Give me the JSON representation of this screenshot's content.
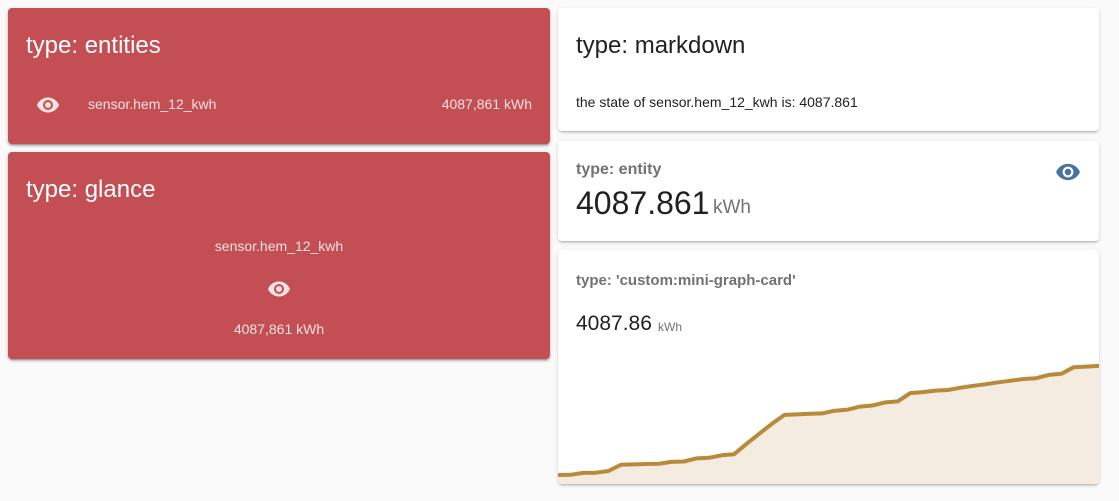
{
  "colors": {
    "entity_red": "#c34e53",
    "eye_icon_state_on": "#44739e",
    "graph_line": "#b88a3a",
    "graph_fill": "#f4ece1"
  },
  "entities_card": {
    "title": "type: entities",
    "row": {
      "icon": "eye-icon",
      "name": "sensor.hem_12_kwh",
      "state": "4087,861 kWh"
    }
  },
  "glance_card": {
    "title": "type: glance",
    "name": "sensor.hem_12_kwh",
    "icon": "eye-icon",
    "state": "4087,861 kWh"
  },
  "markdown_card": {
    "title": "type: markdown",
    "content": "the state of sensor.hem_12_kwh is: 4087.861"
  },
  "entity_card": {
    "name": "type: entity",
    "value": "4087.861",
    "unit": "kWh",
    "icon": "eye-icon"
  },
  "mini_graph_card": {
    "name": "type: 'custom:mini-graph-card'",
    "value": "4087.86",
    "unit": "kWh"
  },
  "chart_data": {
    "type": "area",
    "title": "",
    "xlabel": "",
    "ylabel": "",
    "grid": false,
    "legend": "none",
    "series": [
      {
        "values": [
          0.5,
          0.6,
          1.5,
          1.6,
          2.4,
          5.4,
          5.6,
          5.8,
          5.9,
          6.8,
          7.0,
          8.5,
          8.8,
          10.0,
          10.5,
          15.6,
          20.4,
          25.2,
          29.5,
          29.7,
          30.0,
          30.2,
          31.5,
          32.0,
          33.5,
          34.0,
          35.5,
          36.0,
          40.0,
          40.5,
          41.2,
          41.5,
          42.6,
          43.5,
          44.3,
          45.2,
          46.0,
          46.8,
          47.2,
          48.8,
          49.3,
          52.5,
          52.8,
          53.1
        ]
      }
    ]
  }
}
